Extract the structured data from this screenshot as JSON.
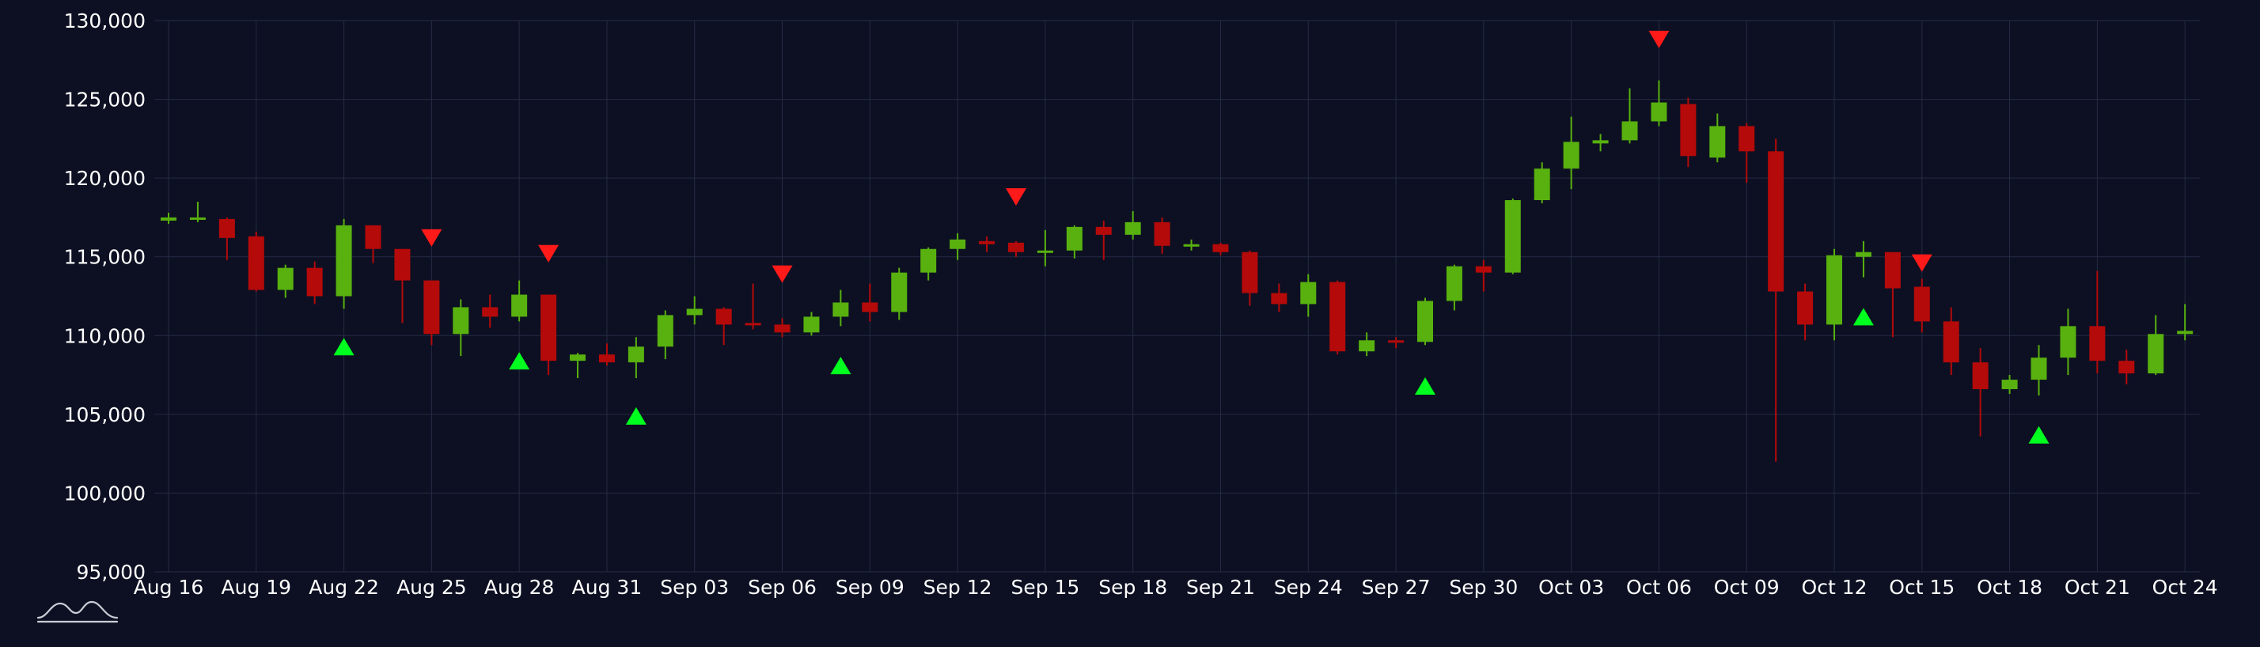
{
  "chart_data": {
    "type": "candlestick",
    "title": "",
    "xlabel": "",
    "ylabel": "",
    "ylim": [
      95000,
      130000
    ],
    "y_ticks": [
      "95,000",
      "100,000",
      "105,000",
      "110,000",
      "115,000",
      "120,000",
      "125,000",
      "130,000"
    ],
    "y_tick_values": [
      95000,
      100000,
      105000,
      110000,
      115000,
      120000,
      125000,
      130000
    ],
    "x_ticks": [
      "Aug 16",
      "Aug 19",
      "Aug 22",
      "Aug 25",
      "Aug 28",
      "Aug 31",
      "Sep 03",
      "Sep 06",
      "Sep 09",
      "Sep 12",
      "Sep 15",
      "Sep 18",
      "Sep 21",
      "Sep 24",
      "Sep 27",
      "Sep 30",
      "Oct 03",
      "Oct 06",
      "Oct 09",
      "Oct 12",
      "Oct 15",
      "Oct 18",
      "Oct 21",
      "Oct 24"
    ],
    "grid": true,
    "colors": {
      "background": "#0d1022",
      "grid": "#252b44",
      "up": "#58b10f",
      "down": "#b50a0a",
      "buy_marker": "#00ff1e",
      "sell_marker": "#ff1a1a"
    },
    "candles": [
      {
        "date": "Aug 16",
        "open": 117300,
        "high": 117800,
        "low": 117100,
        "close": 117500
      },
      {
        "date": "Aug 17",
        "open": 117400,
        "high": 118500,
        "low": 117200,
        "close": 117500
      },
      {
        "date": "Aug 18",
        "open": 117400,
        "high": 117500,
        "low": 114800,
        "close": 116200
      },
      {
        "date": "Aug 19",
        "open": 116300,
        "high": 116600,
        "low": 112800,
        "close": 112900
      },
      {
        "date": "Aug 20",
        "open": 112900,
        "high": 114500,
        "low": 112400,
        "close": 114300
      },
      {
        "date": "Aug 21",
        "open": 114300,
        "high": 114700,
        "low": 112000,
        "close": 112500
      },
      {
        "date": "Aug 22",
        "open": 112500,
        "high": 117400,
        "low": 111700,
        "close": 117000
      },
      {
        "date": "Aug 23",
        "open": 117000,
        "high": 117000,
        "low": 114600,
        "close": 115500
      },
      {
        "date": "Aug 24",
        "open": 115500,
        "high": 115500,
        "low": 110800,
        "close": 113500
      },
      {
        "date": "Aug 25",
        "open": 113500,
        "high": 113500,
        "low": 109400,
        "close": 110100
      },
      {
        "date": "Aug 26",
        "open": 110100,
        "high": 112300,
        "low": 108700,
        "close": 111800
      },
      {
        "date": "Aug 27",
        "open": 111800,
        "high": 112600,
        "low": 110500,
        "close": 111200
      },
      {
        "date": "Aug 28",
        "open": 111200,
        "high": 113500,
        "low": 110900,
        "close": 112600
      },
      {
        "date": "Aug 29",
        "open": 112600,
        "high": 112600,
        "low": 107500,
        "close": 108400
      },
      {
        "date": "Aug 30",
        "open": 108400,
        "high": 108900,
        "low": 107300,
        "close": 108800
      },
      {
        "date": "Aug 31",
        "open": 108800,
        "high": 109500,
        "low": 108100,
        "close": 108300
      },
      {
        "date": "Sep 01",
        "open": 108300,
        "high": 109900,
        "low": 107300,
        "close": 109300
      },
      {
        "date": "Sep 02",
        "open": 109300,
        "high": 111600,
        "low": 108500,
        "close": 111300
      },
      {
        "date": "Sep 03",
        "open": 111300,
        "high": 112500,
        "low": 110700,
        "close": 111700
      },
      {
        "date": "Sep 04",
        "open": 111700,
        "high": 111800,
        "low": 109400,
        "close": 110700
      },
      {
        "date": "Sep 05",
        "open": 110800,
        "high": 113300,
        "low": 110400,
        "close": 110700
      },
      {
        "date": "Sep 06",
        "open": 110700,
        "high": 111100,
        "low": 109900,
        "close": 110200
      },
      {
        "date": "Sep 07",
        "open": 110200,
        "high": 111500,
        "low": 110000,
        "close": 111200
      },
      {
        "date": "Sep 08",
        "open": 111200,
        "high": 112900,
        "low": 110600,
        "close": 112100
      },
      {
        "date": "Sep 09",
        "open": 112100,
        "high": 113300,
        "low": 110900,
        "close": 111500
      },
      {
        "date": "Sep 10",
        "open": 111500,
        "high": 114300,
        "low": 111000,
        "close": 114000
      },
      {
        "date": "Sep 11",
        "open": 114000,
        "high": 115600,
        "low": 113500,
        "close": 115500
      },
      {
        "date": "Sep 12",
        "open": 115500,
        "high": 116500,
        "low": 114800,
        "close": 116100
      },
      {
        "date": "Sep 13",
        "open": 116000,
        "high": 116300,
        "low": 115300,
        "close": 115800
      },
      {
        "date": "Sep 14",
        "open": 115900,
        "high": 116000,
        "low": 115000,
        "close": 115300
      },
      {
        "date": "Sep 15",
        "open": 115300,
        "high": 116700,
        "low": 114400,
        "close": 115400
      },
      {
        "date": "Sep 16",
        "open": 115400,
        "high": 117000,
        "low": 114900,
        "close": 116900
      },
      {
        "date": "Sep 17",
        "open": 116900,
        "high": 117300,
        "low": 114800,
        "close": 116400
      },
      {
        "date": "Sep 18",
        "open": 116400,
        "high": 117900,
        "low": 116100,
        "close": 117200
      },
      {
        "date": "Sep 19",
        "open": 117200,
        "high": 117500,
        "low": 115200,
        "close": 115700
      },
      {
        "date": "Sep 20",
        "open": 115700,
        "high": 116100,
        "low": 115400,
        "close": 115800
      },
      {
        "date": "Sep 21",
        "open": 115800,
        "high": 115900,
        "low": 115100,
        "close": 115300
      },
      {
        "date": "Sep 22",
        "open": 115300,
        "high": 115400,
        "low": 111900,
        "close": 112700
      },
      {
        "date": "Sep 23",
        "open": 112700,
        "high": 113300,
        "low": 111500,
        "close": 112000
      },
      {
        "date": "Sep 24",
        "open": 112000,
        "high": 113900,
        "low": 111200,
        "close": 113400
      },
      {
        "date": "Sep 25",
        "open": 113400,
        "high": 113500,
        "low": 108800,
        "close": 109000
      },
      {
        "date": "Sep 26",
        "open": 109000,
        "high": 110200,
        "low": 108700,
        "close": 109700
      },
      {
        "date": "Sep 27",
        "open": 109700,
        "high": 109900,
        "low": 109200,
        "close": 109600
      },
      {
        "date": "Sep 28",
        "open": 109600,
        "high": 112400,
        "low": 109400,
        "close": 112200
      },
      {
        "date": "Sep 29",
        "open": 112200,
        "high": 114500,
        "low": 111600,
        "close": 114400
      },
      {
        "date": "Sep 30",
        "open": 114400,
        "high": 114800,
        "low": 112800,
        "close": 114000
      },
      {
        "date": "Oct 01",
        "open": 114000,
        "high": 118700,
        "low": 113900,
        "close": 118600
      },
      {
        "date": "Oct 02",
        "open": 118600,
        "high": 121000,
        "low": 118400,
        "close": 120600
      },
      {
        "date": "Oct 03",
        "open": 120600,
        "high": 123900,
        "low": 119300,
        "close": 122300
      },
      {
        "date": "Oct 04",
        "open": 122200,
        "high": 122800,
        "low": 121700,
        "close": 122400
      },
      {
        "date": "Oct 05",
        "open": 122400,
        "high": 125700,
        "low": 122200,
        "close": 123600
      },
      {
        "date": "Oct 06",
        "open": 123600,
        "high": 126200,
        "low": 123300,
        "close": 124800
      },
      {
        "date": "Oct 07",
        "open": 124700,
        "high": 125100,
        "low": 120700,
        "close": 121400
      },
      {
        "date": "Oct 08",
        "open": 121300,
        "high": 124100,
        "low": 121000,
        "close": 123300
      },
      {
        "date": "Oct 09",
        "open": 123300,
        "high": 123500,
        "low": 119700,
        "close": 121700
      },
      {
        "date": "Oct 10",
        "open": 121700,
        "high": 122500,
        "low": 102000,
        "close": 112800
      },
      {
        "date": "Oct 11",
        "open": 112800,
        "high": 113300,
        "low": 109700,
        "close": 110700
      },
      {
        "date": "Oct 12",
        "open": 110700,
        "high": 115500,
        "low": 109700,
        "close": 115100
      },
      {
        "date": "Oct 13",
        "open": 115000,
        "high": 116000,
        "low": 113700,
        "close": 115300
      },
      {
        "date": "Oct 14",
        "open": 115300,
        "high": 115300,
        "low": 109900,
        "close": 113000
      },
      {
        "date": "Oct 15",
        "open": 113100,
        "high": 113600,
        "low": 110200,
        "close": 110900
      },
      {
        "date": "Oct 16",
        "open": 110900,
        "high": 111800,
        "low": 107500,
        "close": 108300
      },
      {
        "date": "Oct 17",
        "open": 108300,
        "high": 109200,
        "low": 103600,
        "close": 106600
      },
      {
        "date": "Oct 18",
        "open": 106600,
        "high": 107500,
        "low": 106300,
        "close": 107200
      },
      {
        "date": "Oct 19",
        "open": 107200,
        "high": 109400,
        "low": 106200,
        "close": 108600
      },
      {
        "date": "Oct 20",
        "open": 108600,
        "high": 111700,
        "low": 107500,
        "close": 110600
      },
      {
        "date": "Oct 21",
        "open": 110600,
        "high": 114100,
        "low": 107600,
        "close": 108400
      },
      {
        "date": "Oct 22",
        "open": 108400,
        "high": 109100,
        "low": 106900,
        "close": 107600
      },
      {
        "date": "Oct 23",
        "open": 107600,
        "high": 111300,
        "low": 107500,
        "close": 110100
      },
      {
        "date": "Oct 24",
        "open": 110100,
        "high": 112000,
        "low": 109700,
        "close": 110300
      }
    ],
    "buy_signals": [
      {
        "date": "Aug 22",
        "price": 109300
      },
      {
        "date": "Aug 28",
        "price": 108400
      },
      {
        "date": "Sep 01",
        "price": 104900
      },
      {
        "date": "Sep 08",
        "price": 108100
      },
      {
        "date": "Sep 28",
        "price": 106800
      },
      {
        "date": "Oct 13",
        "price": 111200
      },
      {
        "date": "Oct 19",
        "price": 103700
      }
    ],
    "sell_signals": [
      {
        "date": "Aug 25",
        "price": 116200
      },
      {
        "date": "Aug 29",
        "price": 115200
      },
      {
        "date": "Sep 06",
        "price": 113900
      },
      {
        "date": "Sep 14",
        "price": 118800
      },
      {
        "date": "Oct 06",
        "price": 128800
      },
      {
        "date": "Oct 15",
        "price": 114600
      }
    ]
  },
  "logo": {
    "icon": "mountain-logo-icon"
  }
}
